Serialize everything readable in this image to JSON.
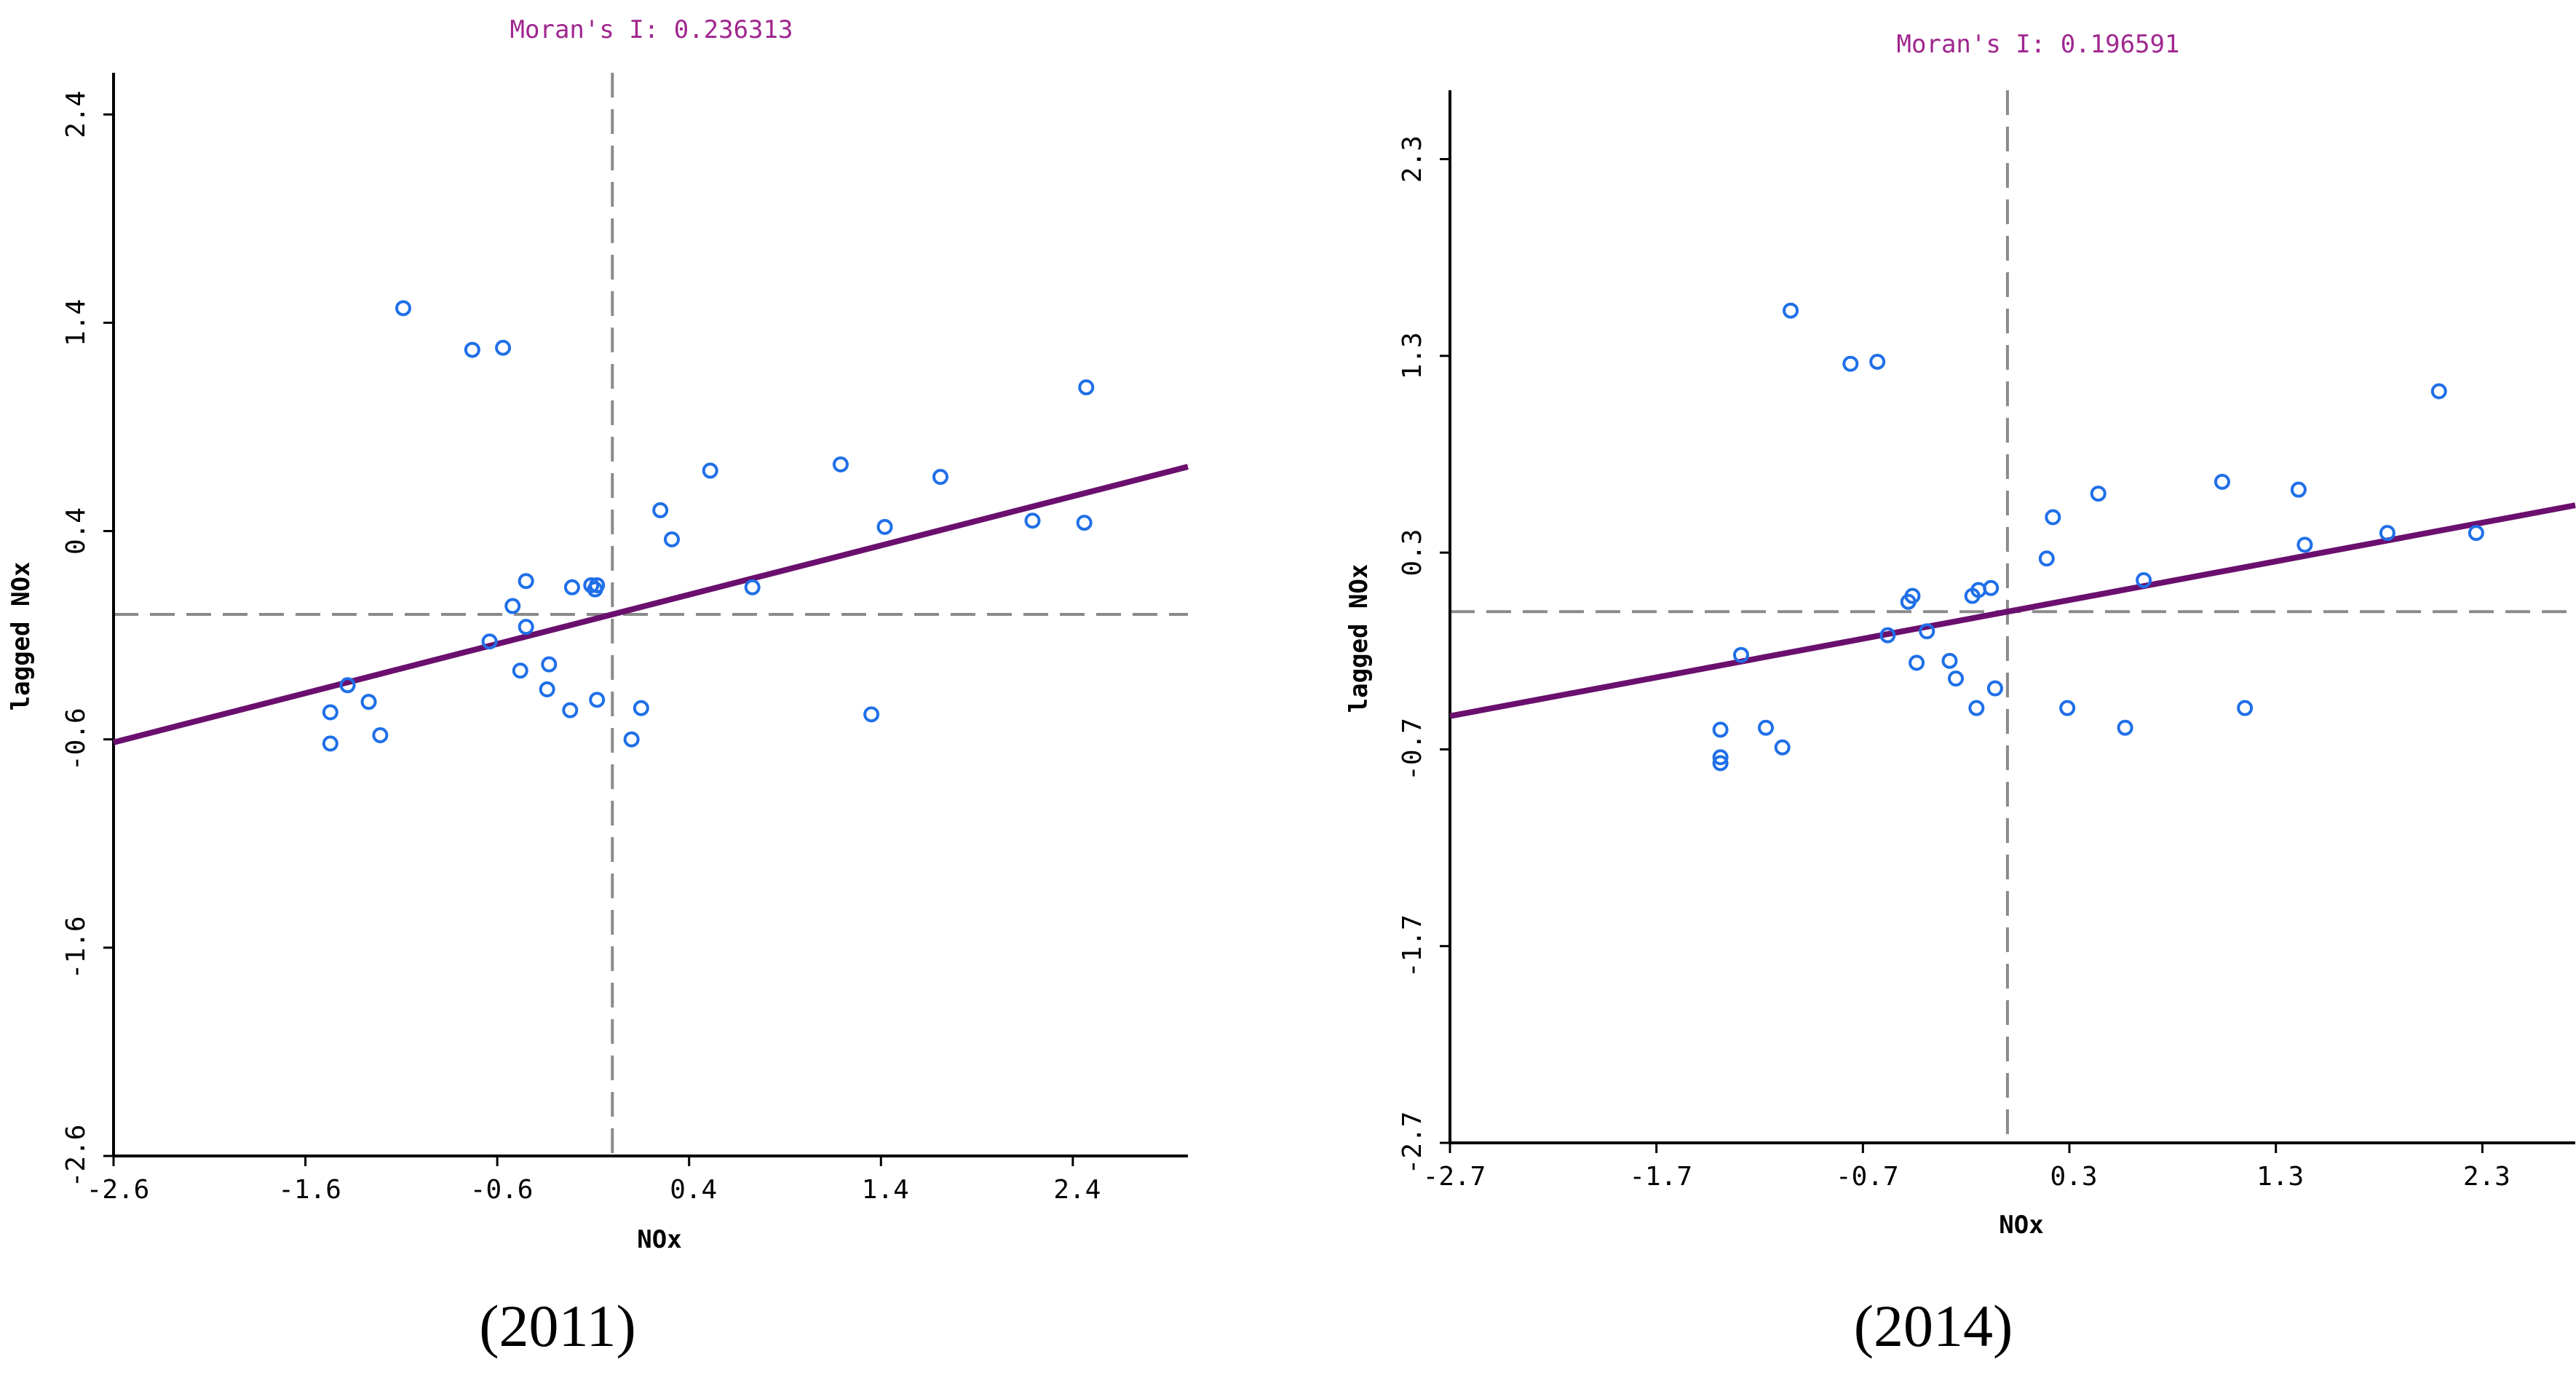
{
  "colors": {
    "points": "#1f6fe8",
    "regression": "#6b0f6e",
    "title": "#a0268f",
    "axes": "#000000",
    "reference": "#8a8a8a"
  },
  "chart_data": [
    {
      "type": "scatter",
      "title": "Moran's I: 0.236313",
      "xlabel": "NOx",
      "ylabel": "lagged NOx",
      "caption": "(2011)",
      "xlim": [
        -2.6,
        3.0
      ],
      "ylim": [
        -2.6,
        2.6
      ],
      "x_ticks": [
        -2.6,
        -1.6,
        -0.6,
        0.4,
        1.4,
        2.4
      ],
      "x_tick_labels": [
        "-2.6",
        "-1.6",
        "-0.6",
        "0.4",
        "1.4",
        "2.4"
      ],
      "y_ticks": [
        -2.6,
        -1.6,
        -0.6,
        0.4,
        1.4,
        2.4
      ],
      "y_tick_labels": [
        "-2.6",
        "-1.6",
        "-0.6",
        "0.4",
        "1.4",
        "2.4"
      ],
      "reference_lines": {
        "x": 0.0,
        "y": 0.0
      },
      "regression": {
        "slope": 0.236313,
        "intercept": 0.0
      },
      "points": [
        {
          "x": -1.47,
          "y": -0.47
        },
        {
          "x": -1.47,
          "y": -0.62
        },
        {
          "x": -1.38,
          "y": -0.34
        },
        {
          "x": -1.27,
          "y": -0.42
        },
        {
          "x": -1.21,
          "y": -0.58
        },
        {
          "x": -1.09,
          "y": 1.47
        },
        {
          "x": -0.73,
          "y": 1.27
        },
        {
          "x": -0.57,
          "y": 1.28
        },
        {
          "x": -0.64,
          "y": -0.13
        },
        {
          "x": -0.52,
          "y": 0.04
        },
        {
          "x": -0.45,
          "y": 0.16
        },
        {
          "x": -0.45,
          "y": -0.06
        },
        {
          "x": -0.48,
          "y": -0.27
        },
        {
          "x": -0.33,
          "y": -0.24
        },
        {
          "x": -0.34,
          "y": -0.36
        },
        {
          "x": -0.22,
          "y": -0.46
        },
        {
          "x": -0.21,
          "y": 0.13
        },
        {
          "x": -0.11,
          "y": 0.14
        },
        {
          "x": -0.09,
          "y": 0.12
        },
        {
          "x": -0.08,
          "y": 0.14
        },
        {
          "x": -0.08,
          "y": -0.41
        },
        {
          "x": 0.1,
          "y": -0.6
        },
        {
          "x": 0.15,
          "y": -0.45
        },
        {
          "x": 0.25,
          "y": 0.5
        },
        {
          "x": 0.31,
          "y": 0.36
        },
        {
          "x": 0.51,
          "y": 0.69
        },
        {
          "x": 0.73,
          "y": 0.13
        },
        {
          "x": 1.19,
          "y": 0.72
        },
        {
          "x": 1.35,
          "y": -0.48
        },
        {
          "x": 1.42,
          "y": 0.42
        },
        {
          "x": 1.71,
          "y": 0.66
        },
        {
          "x": 2.19,
          "y": 0.45
        },
        {
          "x": 2.46,
          "y": 0.44
        },
        {
          "x": 2.47,
          "y": 1.09
        }
      ]
    },
    {
      "type": "scatter",
      "title": "Moran's I: 0.196591",
      "xlabel": "NOx",
      "ylabel": "lagged NOx",
      "caption": "(2014)",
      "xlim": [
        -2.7,
        2.75
      ],
      "ylim": [
        -2.7,
        2.65
      ],
      "x_ticks": [
        -2.7,
        -1.7,
        -0.7,
        0.3,
        1.3,
        2.3
      ],
      "x_tick_labels": [
        "-2.7",
        "-1.7",
        "-0.7",
        "0.3",
        "1.3",
        "2.3"
      ],
      "y_ticks": [
        -2.7,
        -1.7,
        -0.7,
        0.3,
        1.3,
        2.3
      ],
      "y_tick_labels": [
        "-2.7",
        "-1.7",
        "-0.7",
        "0.3",
        "1.3",
        "2.3"
      ],
      "reference_lines": {
        "x": 0.0,
        "y": 0.0
      },
      "regression": {
        "slope": 0.196591,
        "intercept": 0.0
      },
      "points": [
        {
          "x": -1.39,
          "y": -0.6
        },
        {
          "x": -1.39,
          "y": -0.74
        },
        {
          "x": -1.39,
          "y": -0.77
        },
        {
          "x": -1.29,
          "y": -0.22
        },
        {
          "x": -1.17,
          "y": -0.59
        },
        {
          "x": -1.09,
          "y": -0.69
        },
        {
          "x": -1.05,
          "y": 1.53
        },
        {
          "x": -0.76,
          "y": 1.26
        },
        {
          "x": -0.63,
          "y": 1.27
        },
        {
          "x": -0.58,
          "y": -0.12
        },
        {
          "x": -0.48,
          "y": 0.05
        },
        {
          "x": -0.46,
          "y": 0.08
        },
        {
          "x": -0.44,
          "y": -0.26
        },
        {
          "x": -0.39,
          "y": -0.1
        },
        {
          "x": -0.28,
          "y": -0.25
        },
        {
          "x": -0.25,
          "y": -0.34
        },
        {
          "x": -0.15,
          "y": -0.49
        },
        {
          "x": -0.17,
          "y": 0.08
        },
        {
          "x": -0.14,
          "y": 0.11
        },
        {
          "x": -0.08,
          "y": 0.12
        },
        {
          "x": -0.06,
          "y": -0.39
        },
        {
          "x": 0.19,
          "y": 0.27
        },
        {
          "x": 0.22,
          "y": 0.48
        },
        {
          "x": 0.29,
          "y": -0.49
        },
        {
          "x": 0.44,
          "y": 0.6
        },
        {
          "x": 0.57,
          "y": -0.59
        },
        {
          "x": 0.66,
          "y": 0.16
        },
        {
          "x": 1.04,
          "y": 0.66
        },
        {
          "x": 1.15,
          "y": -0.49
        },
        {
          "x": 1.41,
          "y": 0.62
        },
        {
          "x": 1.44,
          "y": 0.34
        },
        {
          "x": 1.84,
          "y": 0.4
        },
        {
          "x": 2.09,
          "y": 1.12
        },
        {
          "x": 2.27,
          "y": 0.4
        }
      ]
    }
  ]
}
